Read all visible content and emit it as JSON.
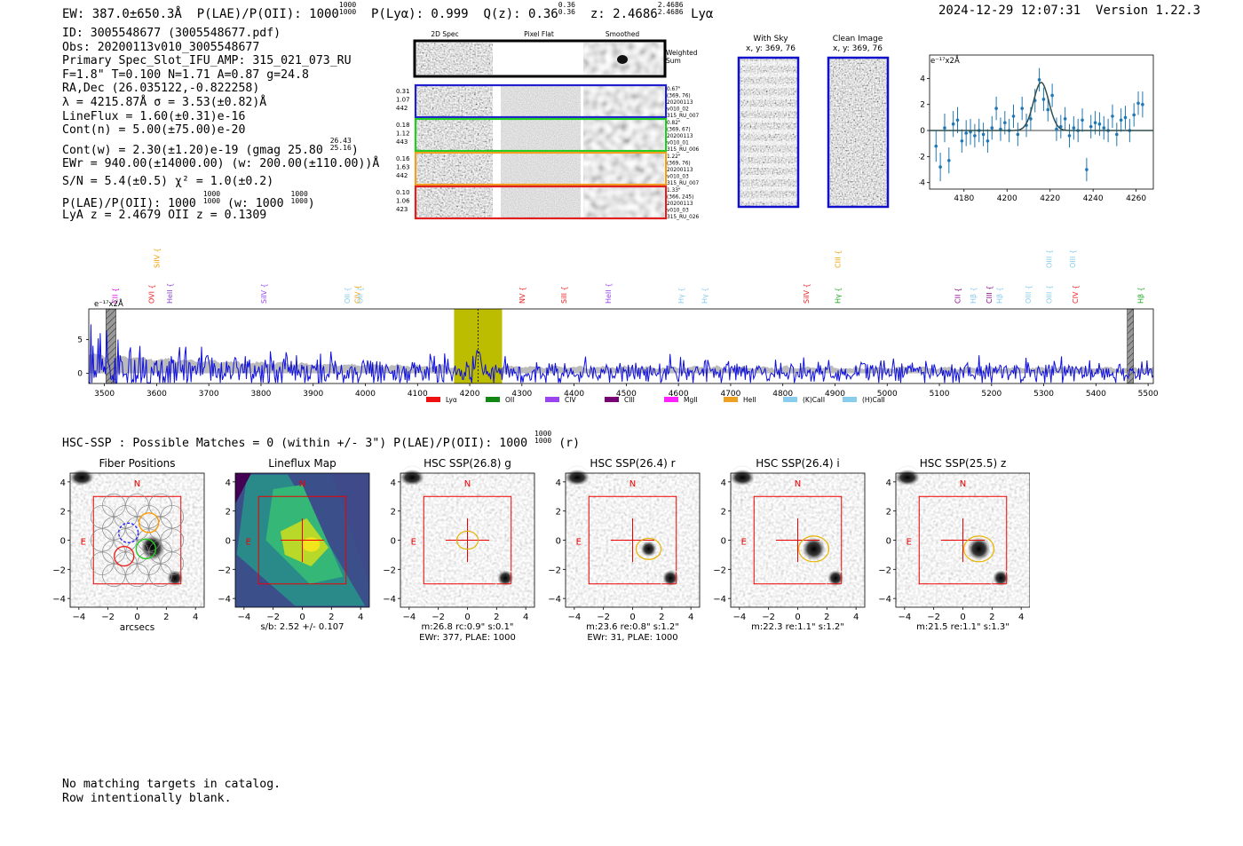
{
  "header": {
    "ew": "EW: 387.0±650.3Å",
    "plae_label": "P(LAE)/P(OII): 1000",
    "plae_sup": "1000",
    "plae_sub": "1000",
    "plya": "P(Lyα): 0.999",
    "qz_label": "Q(z): 0.36",
    "qz_sup": "0.36",
    "qz_sub": "0.36",
    "z_label": "z: 2.4686",
    "z_sup": "2.4686",
    "z_sub": "2.4686",
    "z_line": "Lyα",
    "datetime": "2024-12-29 12:07:31",
    "version": "Version 1.22.3"
  },
  "info": {
    "id": "ID: 3005548677 (3005548677.pdf)",
    "obs": "Obs: 20200113v010_3005548677",
    "primary": "Primary Spec_Slot_IFU_AMP: 315_021_073_RU",
    "fparams": "F=1.8\"  T=0.100  N=1.71  A=0.87  g=24.8",
    "radec": "RA,Dec (26.035122,-0.822258)",
    "lambda": "λ = 4215.87Å   σ = 3.53(±0.82)Å",
    "lineflux": "LineFlux = 1.60(±0.31)e-16",
    "contn": "Cont(n) = 5.00(±75.00)e-20",
    "contw": "Cont(w) = 2.30(±1.20)e-19 (gmag 25.80",
    "contw_sup": "26.43",
    "contw_sub": "25.16",
    "contw_end": ")",
    "ewr": "EWr = 940.00(±14000.00) (w: 200.00(±110.00))Å",
    "sn": "S/N = 5.4(±0.5)   χ² = 1.0(±0.2)",
    "plae": "P(LAE)/P(OII): 1000",
    "plae_sup": "1000",
    "plae_sub": "1000",
    "plae_w": "(w: 1000",
    "plae_w_sup": "1000",
    "plae_w_sub": "1000",
    "plae_w_end": ")",
    "lya": "LyA z = 2.4679  OII z = 0.1309"
  },
  "cutouts": {
    "col_2d": "2D Spec",
    "col_flat": "Pixel Flat",
    "col_smooth": "Smoothed",
    "weighted": "Weighted",
    "sum": "Sum",
    "rows": [
      {
        "w1": "0.31",
        "w2": "1.07",
        "w3": "442",
        "l1": "0.67\"",
        "l2": "(369, 76)",
        "l3": "20200113",
        "l4": "v010_02",
        "l5": "315_RU_007",
        "color": "#1f1fd0"
      },
      {
        "w1": "0.18",
        "w2": "1.12",
        "w3": "443",
        "l1": "0.82\"",
        "l2": "(369, 67)",
        "l3": "20200113",
        "l4": "v010_01",
        "l5": "315_RU_006",
        "color": "#22cc22"
      },
      {
        "w1": "0.16",
        "w2": "1.63",
        "w3": "442",
        "l1": "1.22\"",
        "l2": "(369, 76)",
        "l3": "20200113",
        "l4": "v010_03",
        "l5": "315_RU_007",
        "color": "#f0a020"
      },
      {
        "w1": "0.10",
        "w2": "1.06",
        "w3": "423",
        "l1": "1.33\"",
        "l2": "(366, 245)",
        "l3": "20200113",
        "l4": "v010_03",
        "l5": "315_RU_026",
        "color": "#e02020"
      }
    ]
  },
  "sky": {
    "with_sky": "With Sky",
    "with_sky_xy": "x, y: 369, 76",
    "clean": "Clean Image",
    "clean_xy": "x, y: 369, 76"
  },
  "zoom_chart": {
    "unit": "e⁻¹⁷x2Å"
  },
  "lines": [
    {
      "name": "CII",
      "wave": 3520,
      "level": 1,
      "color": "#dd00dd"
    },
    {
      "name": "SiIV",
      "wave": 3600,
      "level": 0,
      "color": "#f0a000"
    },
    {
      "name": "OVI",
      "wave": 3590,
      "level": 1,
      "color": "#ee2020"
    },
    {
      "name": "HeII",
      "wave": 3625,
      "level": 1,
      "color": "#8844cc"
    },
    {
      "name": "SiIV",
      "wave": 3805,
      "level": 1,
      "color": "#9a44ee"
    },
    {
      "name": "OII",
      "wave": 3965,
      "level": 1,
      "color": "#88ccee"
    },
    {
      "name": "CIV",
      "wave": 3985,
      "level": 1,
      "color": "#f0a000"
    },
    {
      "name": "OII",
      "wave": 3990,
      "level": 1,
      "color": "#88ccee"
    },
    {
      "name": "NV",
      "wave": 4300,
      "level": 1,
      "color": "#ee2020"
    },
    {
      "name": "SiII",
      "wave": 4380,
      "level": 1,
      "color": "#ee2020"
    },
    {
      "name": "HeII",
      "wave": 4465,
      "level": 1,
      "color": "#9a44ee"
    },
    {
      "name": "Hγ",
      "wave": 4605,
      "level": 1,
      "color": "#88ccee"
    },
    {
      "name": "Hγ",
      "wave": 4650,
      "level": 1,
      "color": "#88ccee"
    },
    {
      "name": "SiIV",
      "wave": 4845,
      "level": 1,
      "color": "#ee2020"
    },
    {
      "name": "CIII",
      "wave": 4905,
      "level": 0,
      "color": "#f0a000"
    },
    {
      "name": "Hγ",
      "wave": 4905,
      "level": 1,
      "color": "#22aa22"
    },
    {
      "name": "CII",
      "wave": 5135,
      "level": 1,
      "color": "#880088"
    },
    {
      "name": "Hβ",
      "wave": 5165,
      "level": 1,
      "color": "#88ccee"
    },
    {
      "name": "CIII",
      "wave": 5195,
      "level": 1,
      "color": "#880088"
    },
    {
      "name": "Hβ",
      "wave": 5215,
      "level": 1,
      "color": "#88ccee"
    },
    {
      "name": "OIII",
      "wave": 5270,
      "level": 1,
      "color": "#88ccee"
    },
    {
      "name": "OIII",
      "wave": 5310,
      "level": 0,
      "color": "#88ccee"
    },
    {
      "name": "OIII",
      "wave": 5310,
      "level": 1,
      "color": "#88ccee"
    },
    {
      "name": "OIII",
      "wave": 5355,
      "level": 0,
      "color": "#88ccee"
    },
    {
      "name": "CIV",
      "wave": 5360,
      "level": 1,
      "color": "#ee2020"
    },
    {
      "name": "Hβ",
      "wave": 5485,
      "level": 1,
      "color": "#22aa22"
    }
  ],
  "legend": [
    {
      "name": "Lyα",
      "color": "#ee1111"
    },
    {
      "name": "OII",
      "color": "#118811"
    },
    {
      "name": "CIV",
      "color": "#9a44ee"
    },
    {
      "name": "CIII",
      "color": "#770077"
    },
    {
      "name": "MgII",
      "color": "#ff22ff"
    },
    {
      "name": "HeII",
      "color": "#f0a020"
    },
    {
      "name": "(K)CaII",
      "color": "#88ccee"
    },
    {
      "name": "(H)CaII",
      "color": "#88ccee"
    }
  ],
  "chart_data": [
    {
      "type": "scatter",
      "title": "",
      "ylabel": "e⁻¹⁷x2Å",
      "xlim": [
        4164,
        4268
      ],
      "ylim": [
        -4.5,
        5.8
      ],
      "xticks": [
        4180,
        4200,
        4220,
        4240,
        4260
      ],
      "yticks": [
        -4,
        -2,
        0,
        2,
        4
      ],
      "x": [
        4167,
        4169,
        4171,
        4173,
        4175,
        4177,
        4179,
        4181,
        4183,
        4185,
        4187,
        4189,
        4191,
        4193,
        4195,
        4197,
        4199,
        4201,
        4203,
        4205,
        4207,
        4209,
        4211,
        4213,
        4215,
        4217,
        4219,
        4221,
        4223,
        4225,
        4227,
        4229,
        4231,
        4233,
        4235,
        4237,
        4239,
        4241,
        4243,
        4245,
        4247,
        4249,
        4251,
        4253,
        4255,
        4257,
        4259,
        4261,
        4263
      ],
      "y": [
        -1.2,
        -2.8,
        0.2,
        -2.3,
        0.5,
        0.8,
        -0.8,
        -0.2,
        -0.1,
        -0.4,
        0.0,
        -0.3,
        -0.8,
        0.2,
        1.7,
        0.1,
        0.6,
        0.0,
        1.1,
        -0.3,
        1.7,
        0.4,
        0.9,
        2.3,
        3.9,
        2.4,
        1.6,
        2.7,
        0.1,
        0.3,
        0.9,
        -0.4,
        0.2,
        0.0,
        0.8,
        -3.0,
        0.3,
        0.6,
        0.5,
        0.2,
        0.0,
        1.1,
        -0.3,
        0.8,
        1.0,
        0.0,
        1.2,
        2.1,
        2.0
      ],
      "yerr": [
        1.2,
        1.1,
        1.1,
        1.0,
        1.0,
        1.0,
        0.9,
        1.0,
        1.0,
        0.9,
        0.9,
        0.9,
        0.9,
        0.9,
        0.9,
        0.9,
        0.9,
        0.9,
        0.9,
        0.9,
        0.9,
        0.9,
        0.9,
        0.9,
        0.9,
        0.9,
        0.9,
        0.9,
        0.9,
        0.9,
        0.9,
        0.9,
        0.9,
        0.9,
        0.9,
        0.9,
        0.9,
        0.9,
        0.9,
        0.9,
        0.9,
        0.9,
        0.9,
        0.9,
        0.9,
        0.9,
        0.9,
        0.9,
        1.0
      ],
      "fit": {
        "type": "gaussian",
        "center": 4215.87,
        "sigma": 3.53,
        "amplitude": 3.7
      }
    },
    {
      "type": "line",
      "title": "",
      "ylabel": "e⁻¹⁷x2Å",
      "xlim": [
        3470,
        5510
      ],
      "ylim": [
        -1.5,
        9.5
      ],
      "xticks": [
        3500,
        3600,
        3700,
        3800,
        3900,
        4000,
        4100,
        4200,
        4300,
        4400,
        4500,
        4600,
        4700,
        4800,
        4900,
        5000,
        5100,
        5200,
        5300,
        5400,
        5500
      ],
      "yticks": [
        0,
        5
      ],
      "highlight_band": [
        4170,
        4262
      ],
      "line_marker": 4215.87,
      "masked": [
        [
          3503,
          3522
        ],
        [
          5460,
          5472
        ]
      ],
      "series": [
        {
          "name": "spectrum",
          "color": "#1010dd",
          "envelope_desc": "noisy flux near 0 with larger scatter below 3700"
        },
        {
          "name": "error",
          "color": "#aaaaaa"
        }
      ]
    }
  ],
  "hsc": {
    "line_label": "HSC-SSP : Possible Matches = 0 (within +/- 3\")  P(LAE)/P(OII): 1000",
    "line_sup": "1000",
    "line_sub": "1000",
    "line_end": "(r)",
    "panels": [
      {
        "title": "Fiber Positions",
        "xlabel": "arcsecs",
        "note1": "",
        "note2": "",
        "mode": "fiber"
      },
      {
        "title": "Lineflux Map",
        "xlabel": "",
        "note1": "s/b: 2.52 +/- 0.107",
        "note2": "",
        "mode": "flux"
      },
      {
        "title": "HSC SSP(26.8) g",
        "xlabel": "",
        "note1": "m:26.8 rc:0.9\"  s:0.1\"",
        "note2": "EWr: 377, PLAE: 1000",
        "mode": "g"
      },
      {
        "title": "HSC SSP(26.4) r",
        "xlabel": "",
        "note1": "m:23.6  re:0.8\"  s:1.2\"",
        "note2": "EWr: 31, PLAE: 1000",
        "mode": "r"
      },
      {
        "title": "HSC SSP(26.4) i",
        "xlabel": "",
        "note1": "m:22.3  re:1.1\"  s:1.2\"",
        "note2": "",
        "mode": "i"
      },
      {
        "title": "HSC SSP(25.5) z",
        "xlabel": "",
        "note1": "m:21.5  re:1.1\"  s:1.3\"",
        "note2": "",
        "mode": "z"
      }
    ],
    "ticks": [
      "−4",
      "−2",
      "0",
      "2",
      "4"
    ],
    "north": "N",
    "east": "E"
  },
  "notes": {
    "line1": "No matching targets in catalog.",
    "line2": "Row intentionally blank."
  }
}
